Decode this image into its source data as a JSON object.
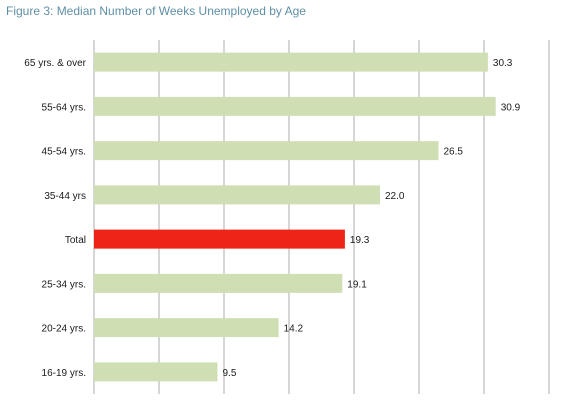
{
  "chart_data": {
    "type": "bar",
    "orientation": "horizontal",
    "title": "Figure 3: Median Number of Weeks Unemployed  by Age",
    "categories": [
      "65 yrs. & over",
      "55-64 yrs.",
      "45-54 yrs.",
      "35-44 yrs",
      "Total",
      "25-34 yrs.",
      "20-24 yrs.",
      "16-19 yrs."
    ],
    "values": [
      30.3,
      30.9,
      26.5,
      22.0,
      19.3,
      19.1,
      14.2,
      9.5
    ],
    "value_labels": [
      "30.3",
      "30.9",
      "26.5",
      "22.0",
      "19.3",
      "19.1",
      "14.2",
      "9.5"
    ],
    "xlim": [
      0,
      35
    ],
    "grid": true,
    "bar_color": "#cfdfb3",
    "highlight_category": "Total",
    "highlight_color": "#ee2417"
  }
}
